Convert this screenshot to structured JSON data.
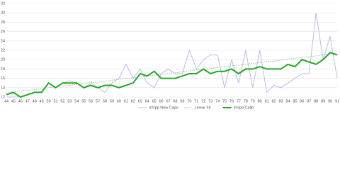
{
  "chart_data": {
    "type": "line",
    "categories": [
      "44",
      "45",
      "46",
      "47",
      "48",
      "49",
      "50",
      "51",
      "52",
      "53",
      "54",
      "55",
      "56",
      "57",
      "58",
      "59",
      "60",
      "61",
      "62",
      "63",
      "64",
      "65",
      "66",
      "67",
      "68",
      "69",
      "70",
      "71",
      "72",
      "73",
      "74",
      "75",
      "76",
      "77",
      "78",
      "79",
      "80",
      "81",
      "82",
      "83",
      "84",
      "85",
      "86",
      "87",
      "88",
      "89",
      "90",
      "91"
    ],
    "ylim": [
      12,
      32
    ],
    "yticks": [
      12,
      14,
      16,
      18,
      20,
      22,
      24,
      26,
      28,
      30,
      32
    ],
    "grid": true,
    "legend": "bottom",
    "series": [
      {
        "name": "mVpp New Caps",
        "color": "#b8bde8",
        "style": "solid",
        "values": [
          12,
          12,
          12,
          12.5,
          13,
          13,
          15,
          14,
          15,
          15.5,
          15,
          14,
          15,
          14,
          13,
          15,
          16,
          19,
          16,
          18,
          15,
          14,
          17,
          18,
          17,
          17,
          22,
          18,
          20,
          21,
          21,
          14,
          20,
          15,
          22,
          14,
          22,
          13,
          14.5,
          14,
          15,
          16,
          17,
          17,
          30,
          20,
          25,
          16
        ]
      },
      {
        "name": "Linear Fit",
        "color": "#b0b0b0",
        "style": "dotted",
        "values": [
          12.9,
          13.1,
          13.3,
          13.4,
          13.6,
          13.8,
          14.0,
          14.2,
          14.3,
          14.5,
          14.7,
          14.9,
          15.1,
          15.2,
          15.4,
          15.6,
          15.8,
          16.0,
          16.1,
          16.3,
          16.5,
          16.7,
          16.9,
          17.0,
          17.2,
          17.4,
          17.6,
          17.8,
          17.9,
          18.1,
          18.3,
          18.5,
          18.7,
          18.8,
          19.0,
          19.2,
          19.4,
          19.6,
          19.7,
          19.9,
          20.1,
          20.3,
          20.5,
          20.6,
          20.8,
          21.0,
          21.2,
          21.4
        ]
      },
      {
        "name": "mVpp Calib",
        "color": "#22aa22",
        "style": "thick",
        "values": [
          12.5,
          13,
          12,
          12.5,
          13,
          13,
          15,
          14,
          15,
          15,
          15,
          14,
          14.5,
          14,
          14.5,
          14.5,
          14,
          14.5,
          15,
          17,
          16.5,
          17.5,
          16,
          16,
          16,
          16.5,
          17,
          17,
          18,
          17,
          17.5,
          17.5,
          18,
          17,
          18,
          18,
          18.5,
          18,
          18,
          18,
          19,
          18.5,
          20,
          19.5,
          19,
          20,
          21.5,
          21
        ]
      }
    ]
  }
}
